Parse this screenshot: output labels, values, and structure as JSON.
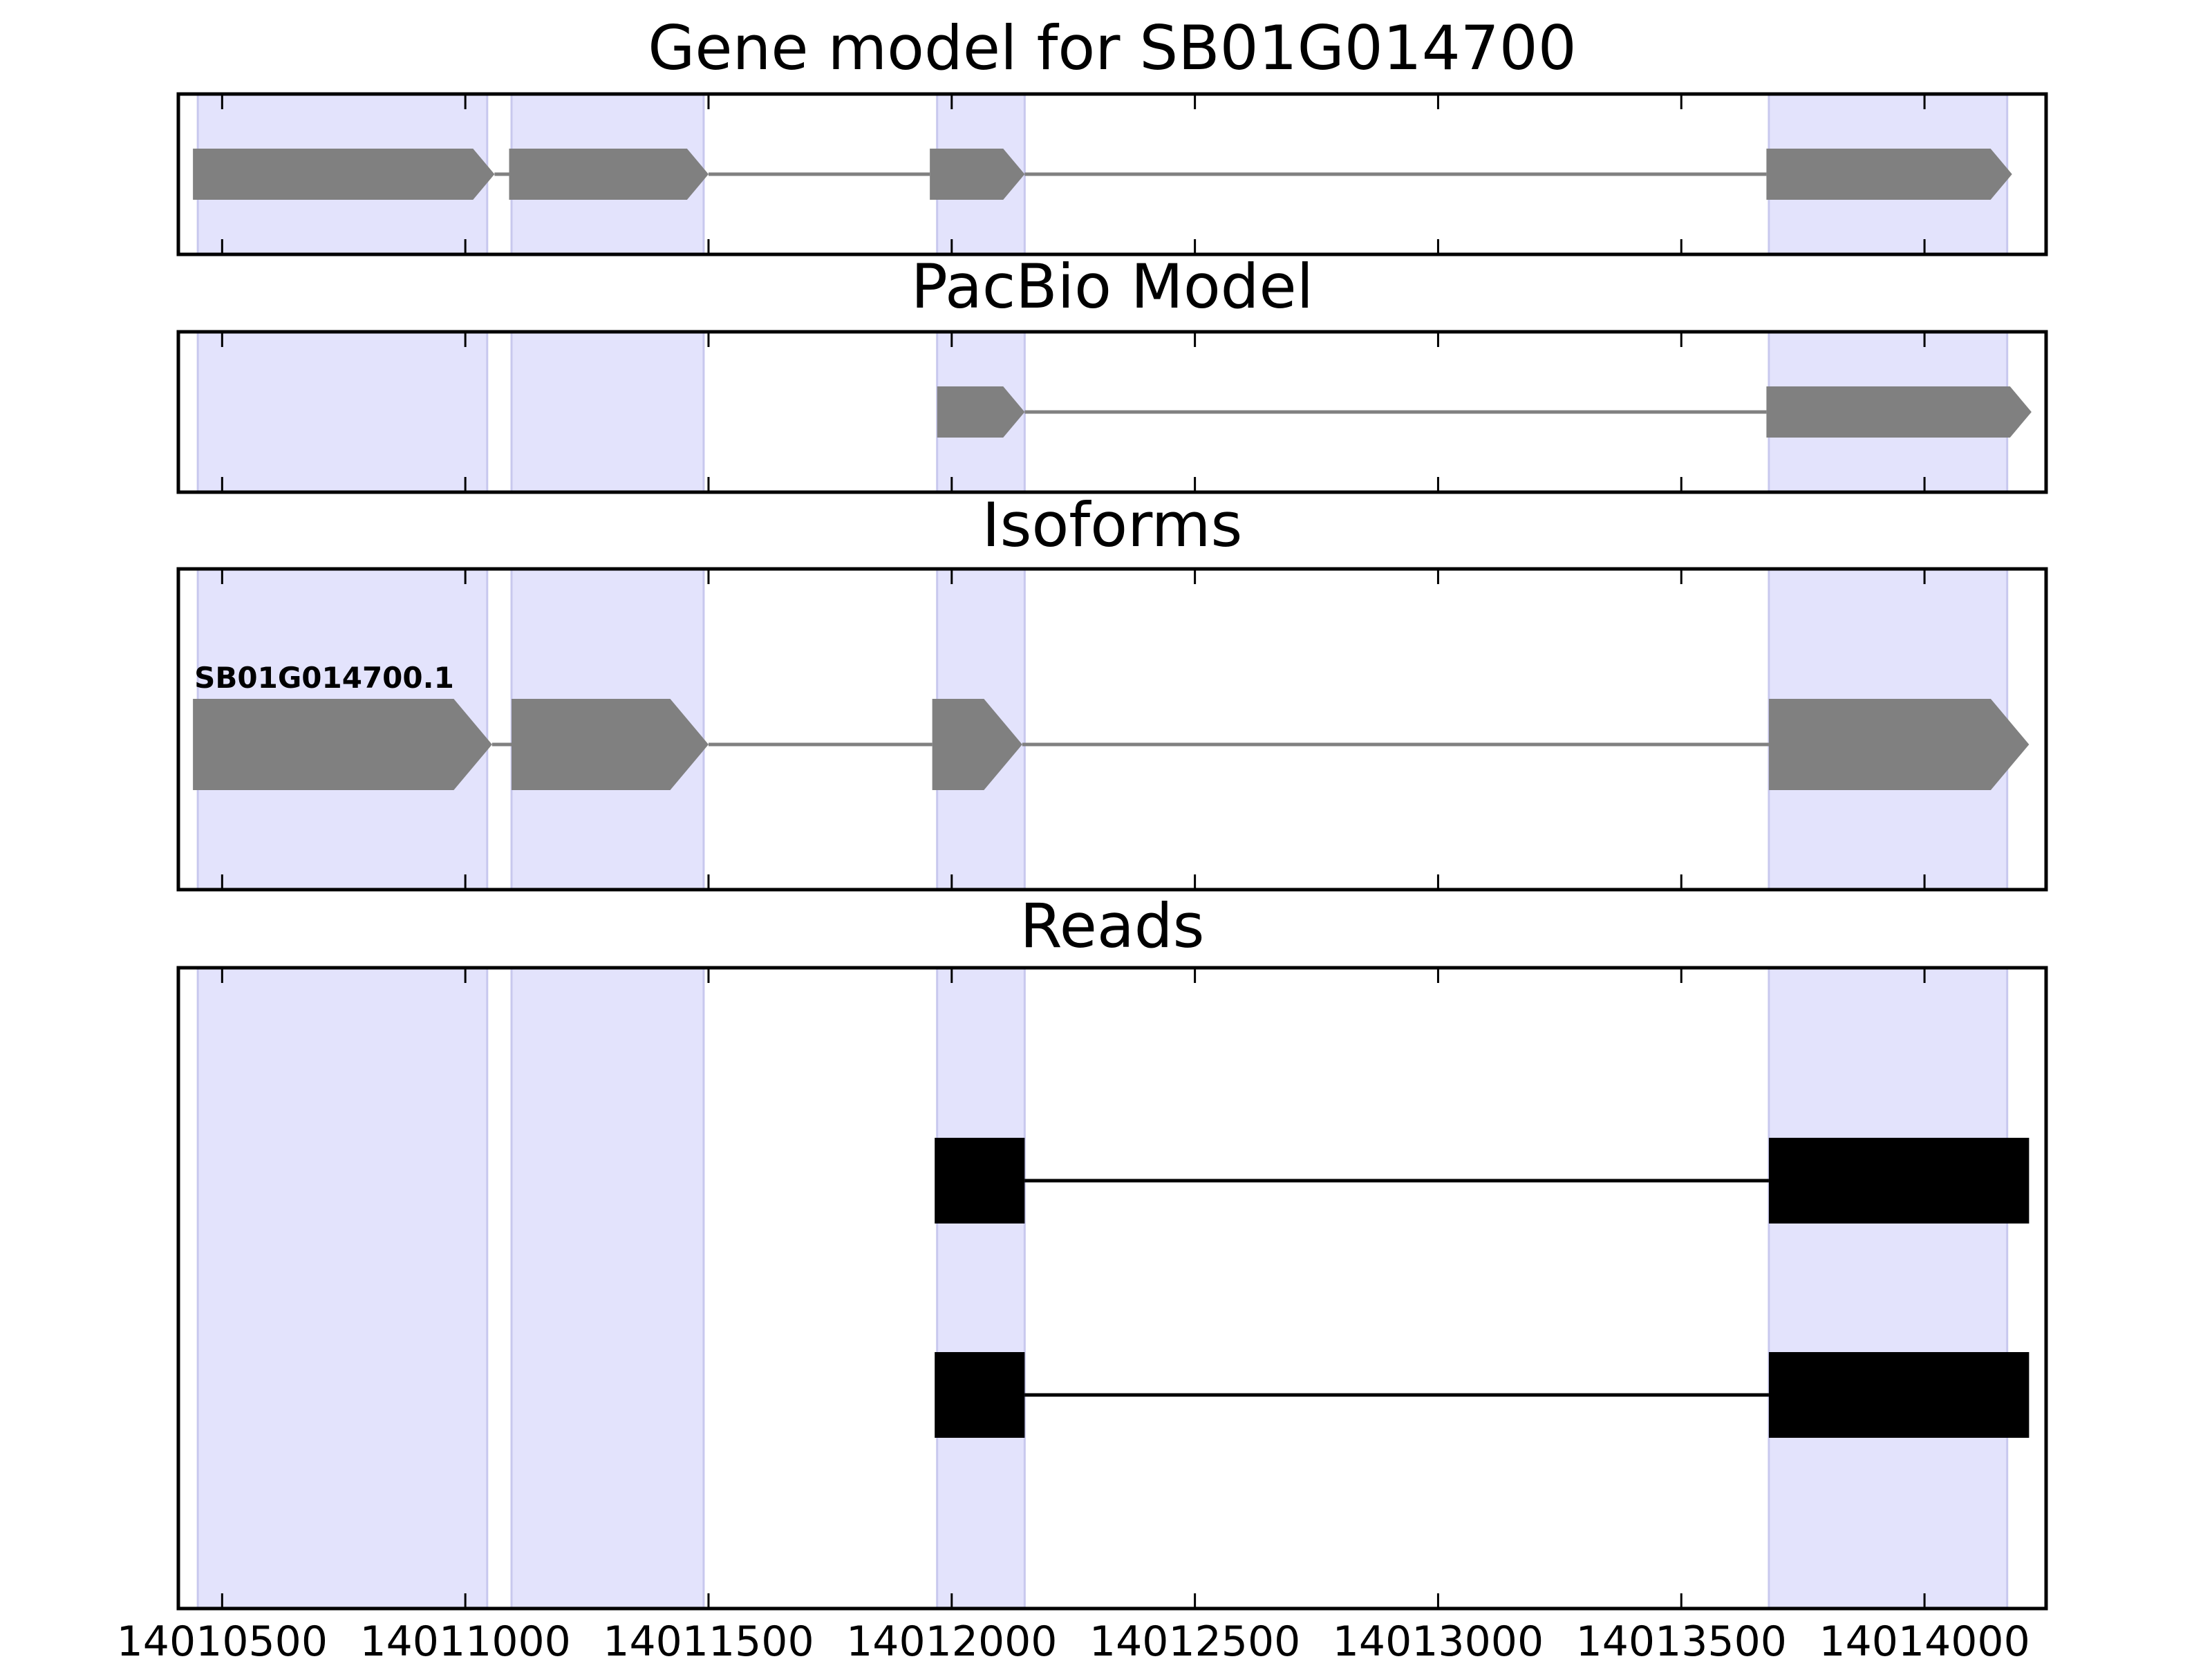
{
  "colors": {
    "exon_band": "#e3e3fc",
    "exon_band_edge": "#c8c8ee",
    "model_feature": "#808080",
    "read_feature": "#000000",
    "frame": "#000000"
  },
  "chart_data": {
    "type": "gene-track",
    "x_axis": {
      "range": [
        14010410,
        14014250
      ],
      "ticks": [
        14010500,
        14011000,
        14011500,
        14012000,
        14012500,
        14013000,
        14013500,
        14014000
      ],
      "tick_labels": [
        "14010500",
        "14011000",
        "14011500",
        "14012000",
        "14012500",
        "14013000",
        "14013500",
        "14014000"
      ]
    },
    "exon_bands": [
      [
        14010450,
        14011045
      ],
      [
        14011095,
        14011490
      ],
      [
        14011970,
        14012150
      ],
      [
        14013680,
        14014170
      ]
    ],
    "panels": [
      {
        "title": "Gene model for SB01G014700",
        "strand": "+",
        "features": [
          {
            "name": "SB01G014700",
            "color_key": "model_feature",
            "exons": [
              [
                14010440,
                14011060
              ],
              [
                14011090,
                14011500
              ],
              [
                14011955,
                14012150
              ],
              [
                14013675,
                14014180
              ]
            ]
          }
        ]
      },
      {
        "title": "PacBio Model",
        "strand": "+",
        "features": [
          {
            "name": "",
            "color_key": "model_feature",
            "exons": [
              [
                14011970,
                14012150
              ],
              [
                14013675,
                14014220
              ]
            ]
          }
        ]
      },
      {
        "title": "Isoforms",
        "strand": "+",
        "features": [
          {
            "name": "SB01G014700.1",
            "color_key": "model_feature",
            "exons": [
              [
                14010440,
                14011055
              ],
              [
                14011095,
                14011500
              ],
              [
                14011960,
                14012145
              ],
              [
                14013680,
                14014215
              ]
            ]
          }
        ]
      },
      {
        "title": "Reads",
        "strand": "none",
        "features": [
          {
            "name": "",
            "color_key": "read_feature",
            "exons": [
              [
                14011965,
                14012150
              ],
              [
                14013680,
                14014215
              ]
            ]
          },
          {
            "name": "",
            "color_key": "read_feature",
            "exons": [
              [
                14011965,
                14012150
              ],
              [
                14013680,
                14014215
              ]
            ]
          }
        ]
      }
    ]
  }
}
